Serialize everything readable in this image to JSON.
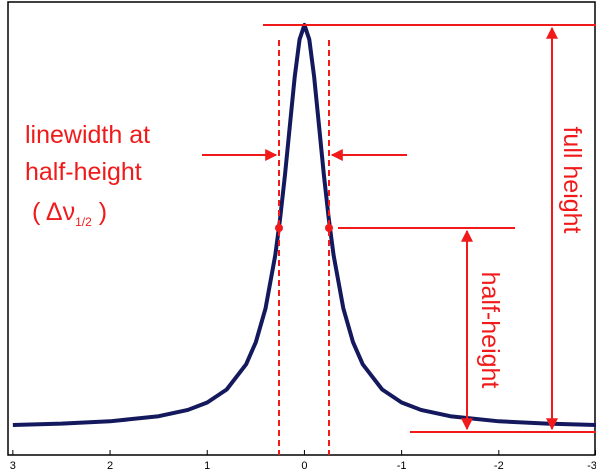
{
  "chart_data": {
    "type": "line",
    "x": [
      3,
      2.5,
      2,
      1.5,
      1.2,
      1,
      0.8,
      0.6,
      0.5,
      0.4,
      0.3,
      0.25,
      0.2,
      0.15,
      0.1,
      0.05,
      0,
      -0.05,
      -0.1,
      -0.15,
      -0.2,
      -0.25,
      -0.3,
      -0.4,
      -0.5,
      -0.6,
      -0.8,
      -1,
      -1.2,
      -1.5,
      -2,
      -2.5,
      -3
    ],
    "series": [
      {
        "color": "#14195e",
        "values": [
          0.0075,
          0.0107,
          0.0166,
          0.0292,
          0.0448,
          0.0633,
          0.0955,
          0.158,
          0.213,
          0.297,
          0.429,
          0.52,
          0.628,
          0.75,
          0.871,
          0.964,
          1,
          0.964,
          0.871,
          0.75,
          0.628,
          0.52,
          0.429,
          0.297,
          0.213,
          0.158,
          0.0955,
          0.0633,
          0.0448,
          0.0292,
          0.0166,
          0.0107,
          0.0075
        ]
      }
    ],
    "xlim": [
      3.05,
      -3
    ],
    "xticks": [
      3,
      2,
      1,
      0,
      -1,
      -2,
      -3
    ],
    "ylim": [
      -0.067,
      1.042
    ],
    "annotations": {
      "linewidth_line1": "linewidth at",
      "linewidth_line2": "half-height",
      "delta_open": "( Δν",
      "delta_sub": "1/2",
      "delta_close": " )",
      "full_height": "full height",
      "half_height": "half-height"
    }
  }
}
